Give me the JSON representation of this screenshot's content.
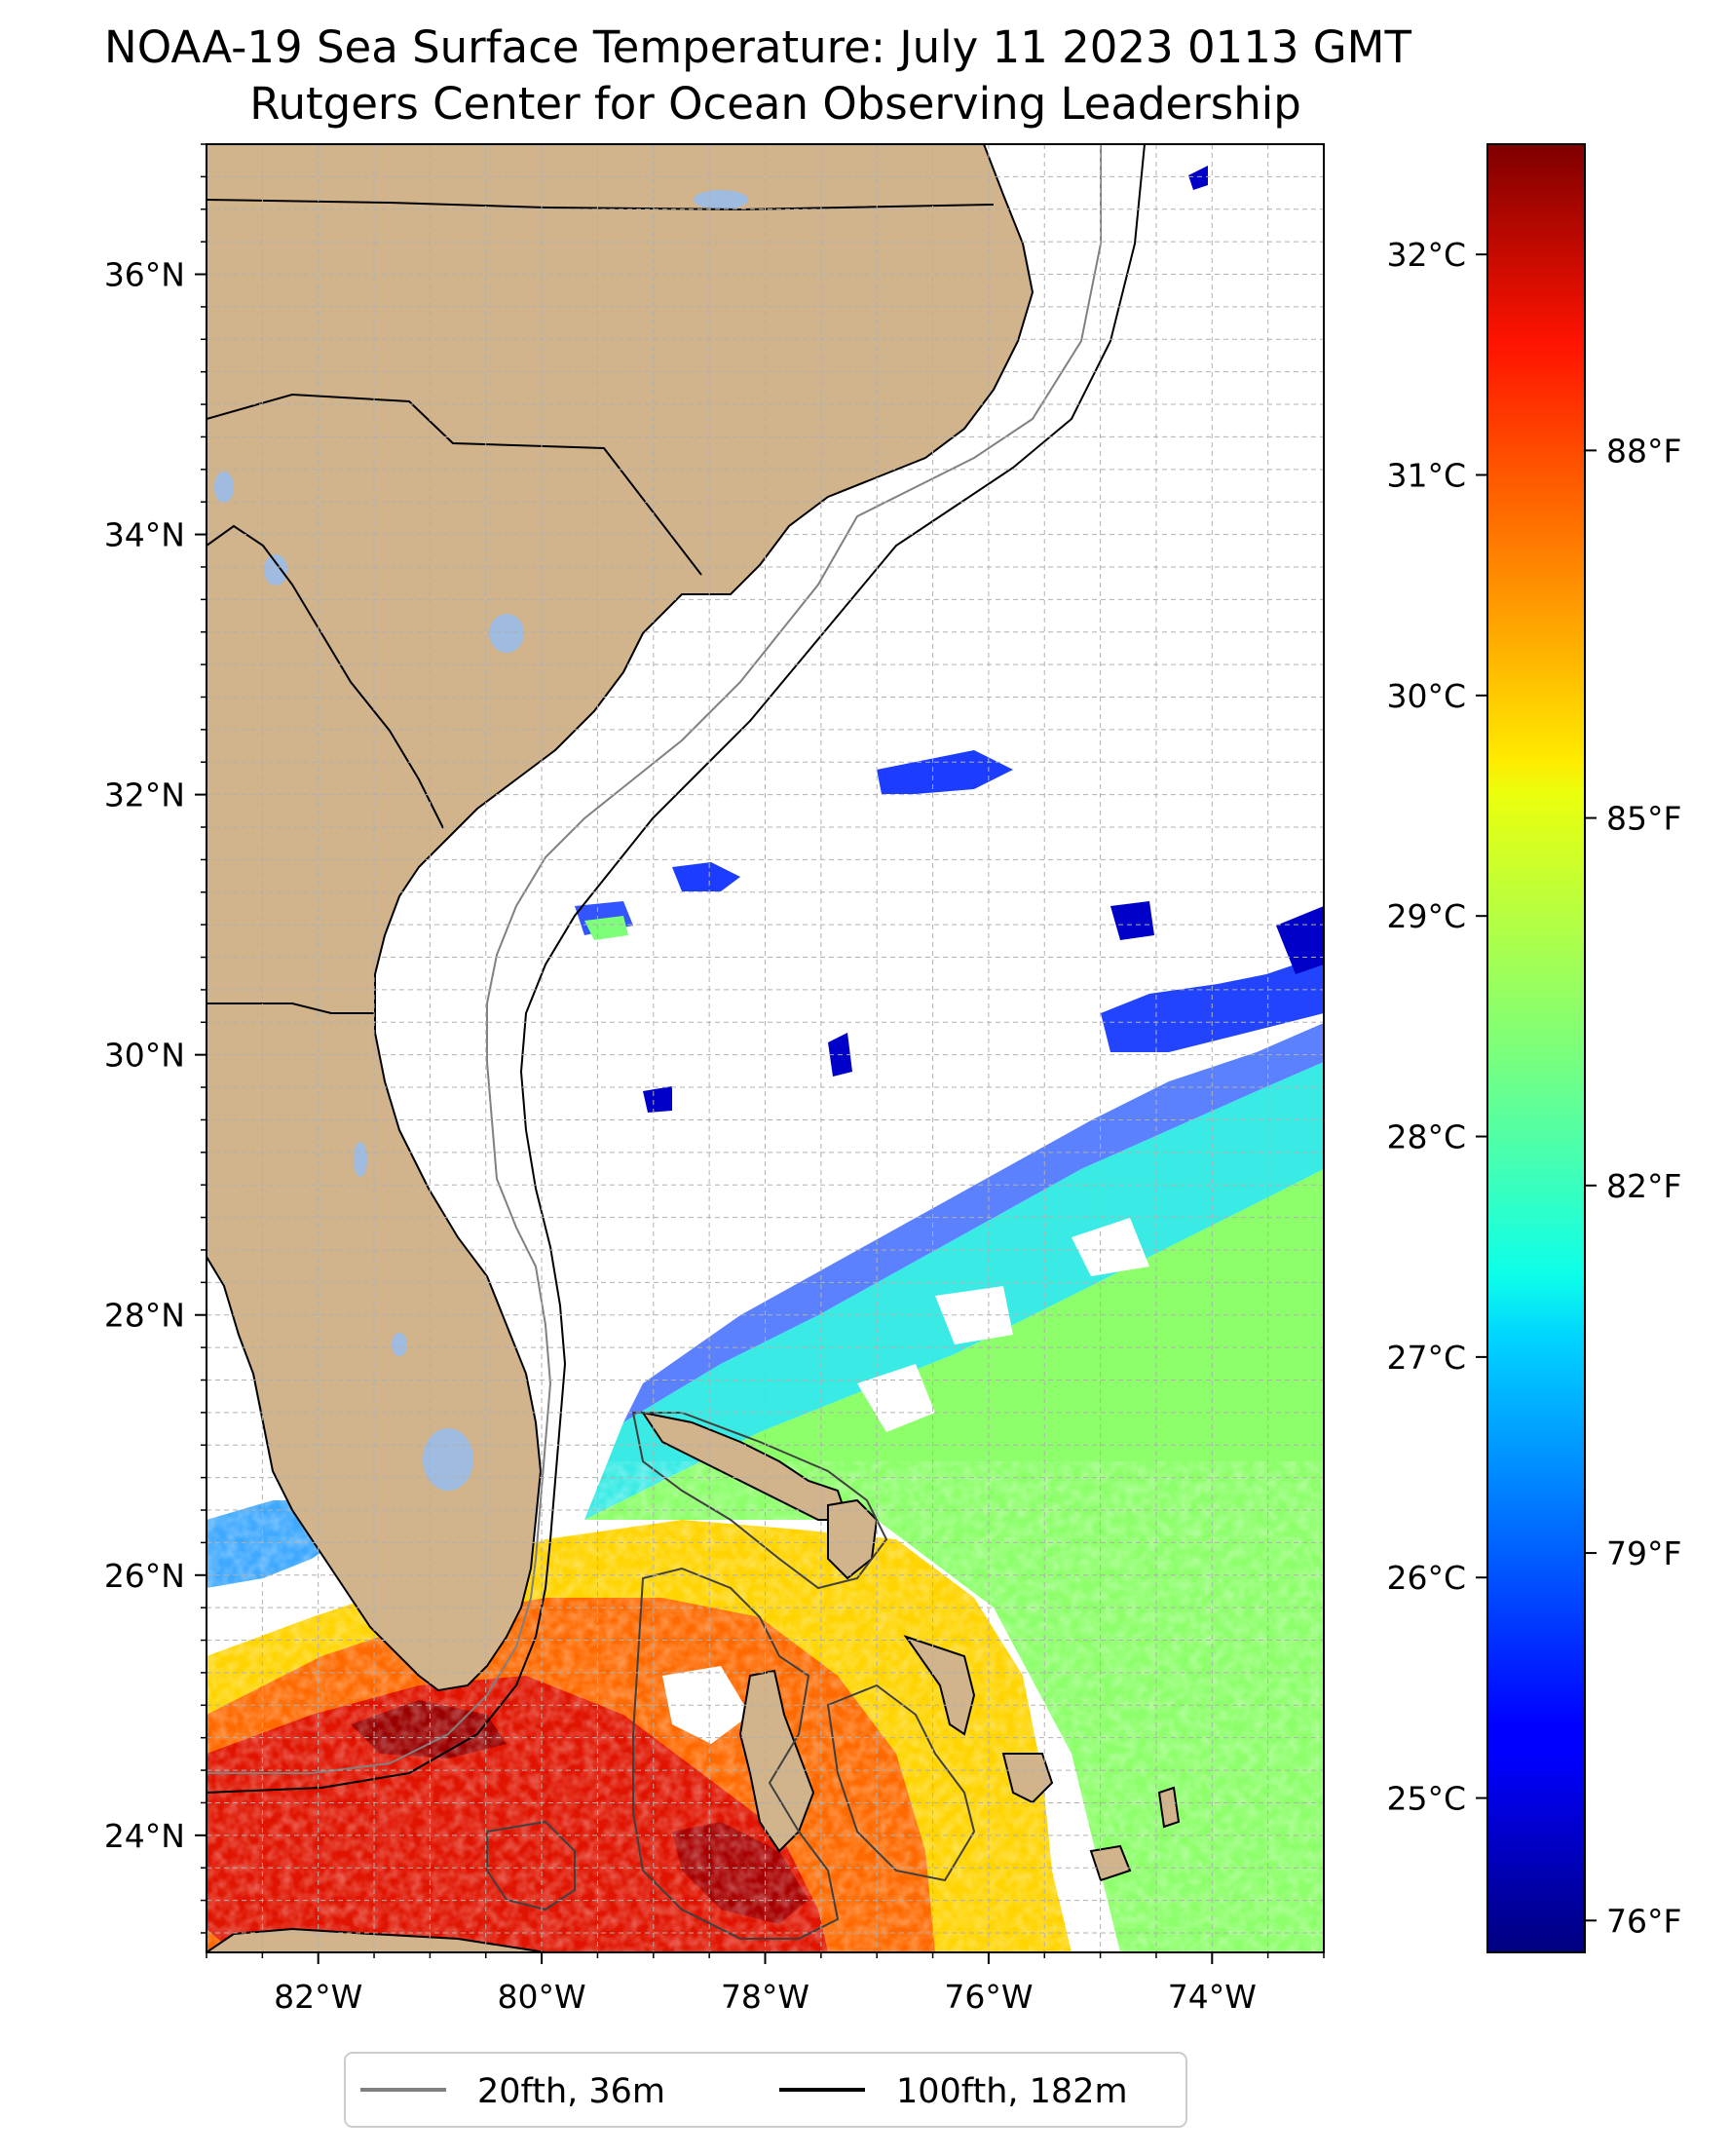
{
  "title": {
    "line1": "NOAA-19 Sea Surface Temperature: July 11 2023 0113 GMT",
    "line2": "Rutgers Center for Ocean Observing Leadership"
  },
  "colors": {
    "land": "#d2b48c",
    "lakes": "#9fbbe0",
    "border": "#000000",
    "contour_20fth": "#808080",
    "contour_100fth": "#000000",
    "grid": "#b0b0b0"
  },
  "map": {
    "lon_range": [
      -83,
      -73
    ],
    "lat_range": [
      23.1,
      37.0
    ],
    "lon_ticks": [
      {
        "value": -82,
        "label": "82°W"
      },
      {
        "value": -80,
        "label": "80°W"
      },
      {
        "value": -78,
        "label": "78°W"
      },
      {
        "value": -76,
        "label": "76°W"
      },
      {
        "value": -74,
        "label": "74°W"
      }
    ],
    "lat_ticks": [
      {
        "value": 24,
        "label": "24°N"
      },
      {
        "value": 26,
        "label": "26°N"
      },
      {
        "value": 28,
        "label": "28°N"
      },
      {
        "value": 30,
        "label": "30°N"
      },
      {
        "value": 32,
        "label": "32°N"
      },
      {
        "value": 34,
        "label": "34°N"
      },
      {
        "value": 36,
        "label": "36°N"
      }
    ]
  },
  "colorbar": {
    "colormap": "jet",
    "range_c": [
      24.3,
      32.5
    ],
    "celsius_ticks": [
      {
        "value": 25,
        "label": "25°C"
      },
      {
        "value": 26,
        "label": "26°C"
      },
      {
        "value": 27,
        "label": "27°C"
      },
      {
        "value": 28,
        "label": "28°C"
      },
      {
        "value": 29,
        "label": "29°C"
      },
      {
        "value": 30,
        "label": "30°C"
      },
      {
        "value": 31,
        "label": "31°C"
      },
      {
        "value": 32,
        "label": "32°C"
      }
    ],
    "fahrenheit_ticks": [
      {
        "value": 76,
        "label": "76°F"
      },
      {
        "value": 79,
        "label": "79°F"
      },
      {
        "value": 82,
        "label": "82°F"
      },
      {
        "value": 85,
        "label": "85°F"
      },
      {
        "value": 88,
        "label": "88°F"
      }
    ]
  },
  "legend": {
    "entries": [
      {
        "label": "20fth, 36m",
        "color": "#808080"
      },
      {
        "label": "100fth, 182m",
        "color": "#000000"
      }
    ]
  }
}
